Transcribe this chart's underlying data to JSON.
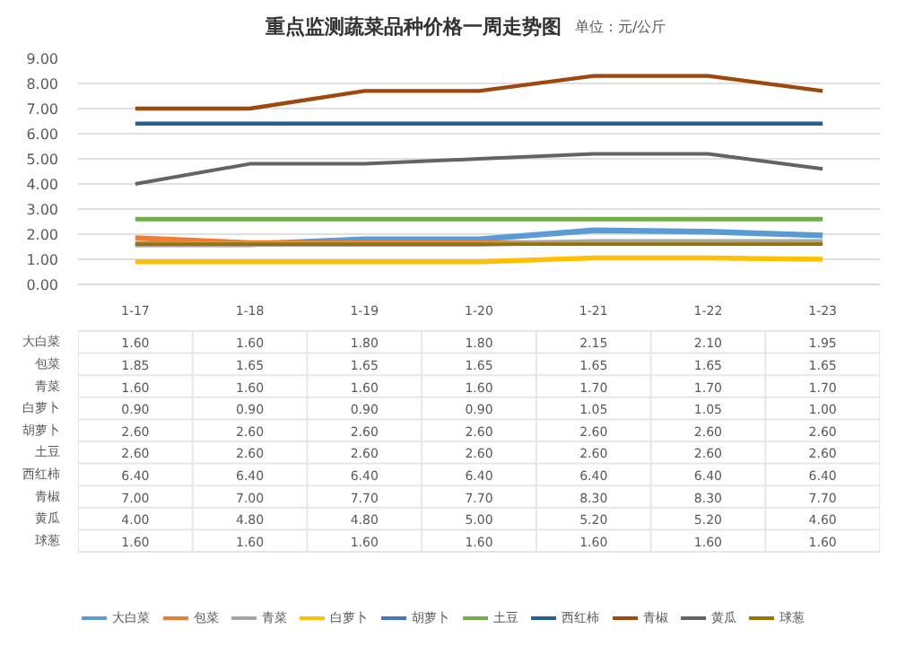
{
  "chart_data": {
    "type": "line",
    "title": "重点监测蔬菜品种价格一周走势图",
    "annotations": [
      "单位：元/公斤"
    ],
    "categories": [
      "1-17",
      "1-18",
      "1-19",
      "1-20",
      "1-21",
      "1-22",
      "1-23"
    ],
    "ylim": [
      0,
      9
    ],
    "yticks": [
      {
        "value": 0,
        "label": "0.00"
      },
      {
        "value": 1,
        "label": "1.00"
      },
      {
        "value": 2,
        "label": "2.00"
      },
      {
        "value": 3,
        "label": "3.00"
      },
      {
        "value": 4,
        "label": "4.00"
      },
      {
        "value": 5,
        "label": "5.00"
      },
      {
        "value": 6,
        "label": "6.00"
      },
      {
        "value": 7,
        "label": "7.00"
      },
      {
        "value": 8,
        "label": "8.00"
      },
      {
        "value": 9,
        "label": "9.00"
      }
    ],
    "grid": "y",
    "legend": "bottom",
    "series": [
      {
        "name": "大白菜",
        "color": "#5b9bd5",
        "values": [
          1.6,
          1.6,
          1.8,
          1.8,
          2.15,
          2.1,
          1.95
        ],
        "value_labels": [
          "1.60",
          "1.60",
          "1.80",
          "1.80",
          "2.15",
          "2.10",
          "1.95"
        ]
      },
      {
        "name": "包菜",
        "color": "#ed7d31",
        "values": [
          1.85,
          1.65,
          1.65,
          1.65,
          1.65,
          null,
          null
        ],
        "value_labels": [
          "1.85",
          "1.65",
          "1.65",
          "1.65",
          "1.65",
          "1.65",
          "1.65"
        ]
      },
      {
        "name": "青菜",
        "color": "#a5a5a5",
        "values": [
          1.6,
          1.6,
          1.6,
          1.6,
          1.7,
          1.7,
          1.7
        ],
        "value_labels": [
          "1.60",
          "1.60",
          "1.60",
          "1.60",
          "1.70",
          "1.70",
          "1.70"
        ]
      },
      {
        "name": "白萝卜",
        "color": "#ffc000",
        "values": [
          0.9,
          0.9,
          0.9,
          0.9,
          1.05,
          1.05,
          1.0
        ],
        "value_labels": [
          "0.90",
          "0.90",
          "0.90",
          "0.90",
          "1.05",
          "1.05",
          "1.00"
        ]
      },
      {
        "name": "胡萝卜",
        "color": "#4472c4",
        "values": [
          null,
          null,
          null,
          null,
          null,
          null,
          null
        ],
        "value_labels": [
          "2.60",
          "2.60",
          "2.60",
          "2.60",
          "2.60",
          "2.60",
          "2.60"
        ]
      },
      {
        "name": "土豆",
        "color": "#70ad47",
        "values": [
          2.6,
          2.6,
          2.6,
          2.6,
          2.6,
          2.6,
          2.6
        ],
        "value_labels": [
          "2.60",
          "2.60",
          "2.60",
          "2.60",
          "2.60",
          "2.60",
          "2.60"
        ]
      },
      {
        "name": "西红柿",
        "color": "#255e91",
        "values": [
          6.4,
          6.4,
          6.4,
          6.4,
          6.4,
          6.4,
          6.4
        ],
        "value_labels": [
          "6.40",
          "6.40",
          "6.40",
          "6.40",
          "6.40",
          "6.40",
          "6.40"
        ]
      },
      {
        "name": "青椒",
        "color": "#9e480e",
        "values": [
          7.0,
          7.0,
          7.7,
          7.7,
          8.3,
          8.3,
          7.7
        ],
        "value_labels": [
          "7.00",
          "7.00",
          "7.70",
          "7.70",
          "8.30",
          "8.30",
          "7.70"
        ]
      },
      {
        "name": "黄瓜",
        "color": "#636363",
        "values": [
          4.0,
          4.8,
          4.8,
          5.0,
          5.2,
          5.2,
          4.6
        ],
        "value_labels": [
          "4.00",
          "4.80",
          "4.80",
          "5.00",
          "5.20",
          "5.20",
          "4.60"
        ]
      },
      {
        "name": "球葱",
        "color": "#997300",
        "values": [
          1.6,
          1.6,
          1.6,
          1.6,
          1.6,
          1.6,
          1.6
        ],
        "value_labels": [
          "1.60",
          "1.60",
          "1.60",
          "1.60",
          "1.60",
          "1.60",
          "1.60"
        ]
      }
    ]
  }
}
